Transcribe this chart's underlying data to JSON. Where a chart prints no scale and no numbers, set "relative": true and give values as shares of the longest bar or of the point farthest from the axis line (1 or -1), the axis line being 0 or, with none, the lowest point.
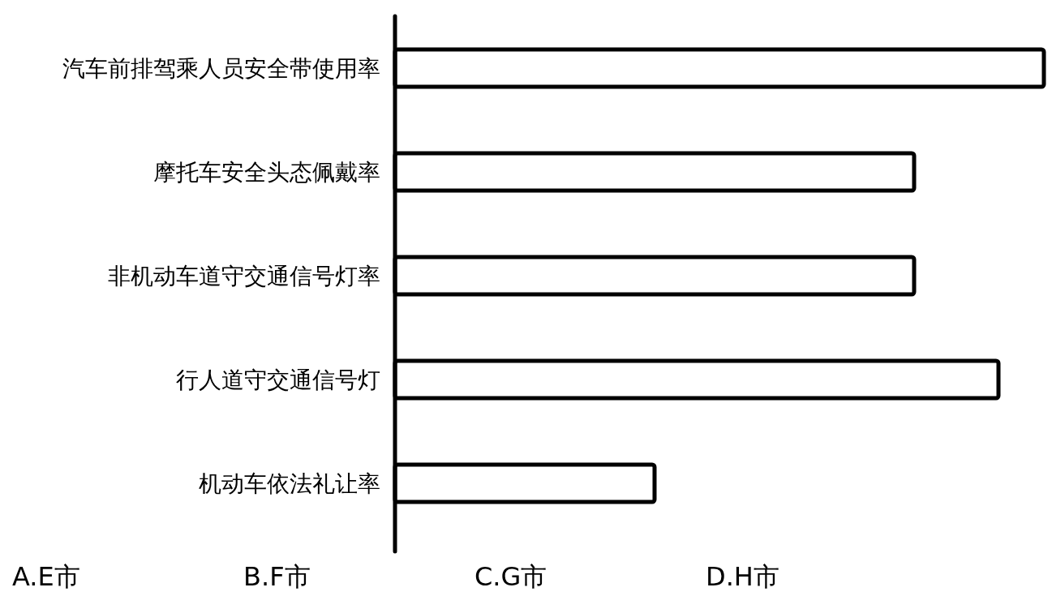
{
  "chart_data": {
    "type": "bar",
    "orientation": "horizontal",
    "relative": true,
    "color": "#ffffff",
    "categories": [
      "汽车前排驾乘人员安全带使用率",
      "摩托车安全头态佩戴率",
      "非机动车道守交通信号灯率",
      "行人道守交通信号灯",
      "机动车依法礼让率"
    ],
    "values": [
      1,
      0.8,
      0.8,
      0.93,
      0.4
    ],
    "annotations": [
      "A.E市",
      "B.F市",
      "C.G市",
      "D.H市"
    ]
  }
}
